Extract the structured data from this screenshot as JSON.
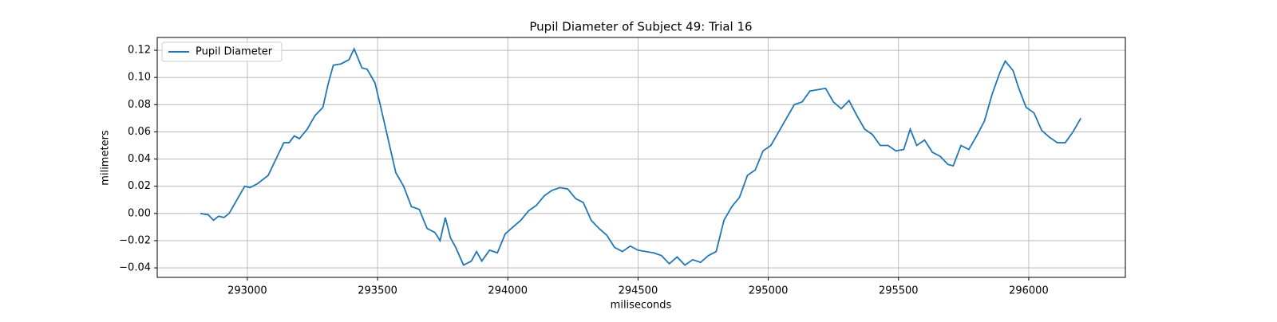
{
  "chart_data": {
    "type": "line",
    "title": "Pupil Diameter of Subject 49: Trial 16",
    "x_label": "miliseconds",
    "y_label": "milimeters",
    "xlim": [
      292654,
      296371
    ],
    "ylim": [
      -0.047,
      0.1294
    ],
    "xticks": [
      293000,
      293500,
      294000,
      294500,
      295000,
      295500,
      296000
    ],
    "yticks": [
      {
        "value": -0.04,
        "label": "−0.04"
      },
      {
        "value": -0.02,
        "label": "−0.02"
      },
      {
        "value": 0,
        "label": "0.00"
      },
      0.02,
      0.04,
      0.06,
      0.08,
      {
        "value": 0.1,
        "label": "0.10"
      },
      0.12
    ],
    "grid": true,
    "legend": "upper left",
    "x": [
      292820,
      292850,
      292870,
      292890,
      292910,
      292930,
      292960,
      292990,
      293010,
      293040,
      293080,
      293110,
      293140,
      293160,
      293180,
      293200,
      293230,
      293260,
      293290,
      293310,
      293330,
      293360,
      293390,
      293410,
      293440,
      293460,
      293490,
      293510,
      293540,
      293570,
      293600,
      293630,
      293660,
      293690,
      293720,
      293740,
      293760,
      293780,
      293800,
      293830,
      293860,
      293880,
      293900,
      293930,
      293960,
      293990,
      294020,
      294050,
      294080,
      294110,
      294140,
      294170,
      294200,
      294230,
      294260,
      294290,
      294320,
      294350,
      294380,
      294410,
      294440,
      294470,
      294500,
      294530,
      294560,
      294590,
      294620,
      294650,
      294680,
      294710,
      294740,
      294770,
      294800,
      294830,
      294860,
      294890,
      294920,
      294950,
      294980,
      295010,
      295040,
      295070,
      295100,
      295130,
      295160,
      295190,
      295220,
      295250,
      295280,
      295310,
      295340,
      295370,
      295400,
      295430,
      295460,
      295490,
      295520,
      295545,
      295570,
      295600,
      295630,
      295660,
      295690,
      295710,
      295740,
      295770,
      295800,
      295830,
      295860,
      295890,
      295910,
      295940,
      295960,
      295990,
      296020,
      296050,
      296080,
      296110,
      296140,
      296170,
      296200
    ],
    "series": [
      {
        "name": "Pupil Diameter",
        "color": "#1f77b4",
        "values": [
          0.0,
          -0.001,
          -0.005,
          -0.002,
          -0.003,
          0.0,
          0.01,
          0.02,
          0.019,
          0.022,
          0.028,
          0.04,
          0.052,
          0.052,
          0.057,
          0.055,
          0.062,
          0.072,
          0.078,
          0.095,
          0.109,
          0.11,
          0.113,
          0.121,
          0.107,
          0.106,
          0.096,
          0.08,
          0.055,
          0.03,
          0.02,
          0.005,
          0.003,
          -0.011,
          -0.014,
          -0.02,
          -0.003,
          -0.018,
          -0.025,
          -0.038,
          -0.035,
          -0.028,
          -0.035,
          -0.027,
          -0.029,
          -0.015,
          -0.01,
          -0.005,
          0.002,
          0.006,
          0.013,
          0.017,
          0.019,
          0.018,
          0.011,
          0.008,
          -0.005,
          -0.011,
          -0.016,
          -0.025,
          -0.028,
          -0.024,
          -0.027,
          -0.028,
          -0.029,
          -0.031,
          -0.037,
          -0.032,
          -0.038,
          -0.034,
          -0.036,
          -0.031,
          -0.028,
          -0.005,
          0.005,
          0.012,
          0.028,
          0.032,
          0.046,
          0.05,
          0.06,
          0.07,
          0.08,
          0.082,
          0.09,
          0.091,
          0.092,
          0.082,
          0.077,
          0.083,
          0.072,
          0.062,
          0.058,
          0.05,
          0.05,
          0.046,
          0.047,
          0.062,
          0.05,
          0.054,
          0.045,
          0.042,
          0.036,
          0.035,
          0.05,
          0.047,
          0.057,
          0.068,
          0.088,
          0.104,
          0.112,
          0.105,
          0.093,
          0.078,
          0.074,
          0.061,
          0.056,
          0.052,
          0.052,
          0.06,
          0.07
        ]
      }
    ]
  }
}
